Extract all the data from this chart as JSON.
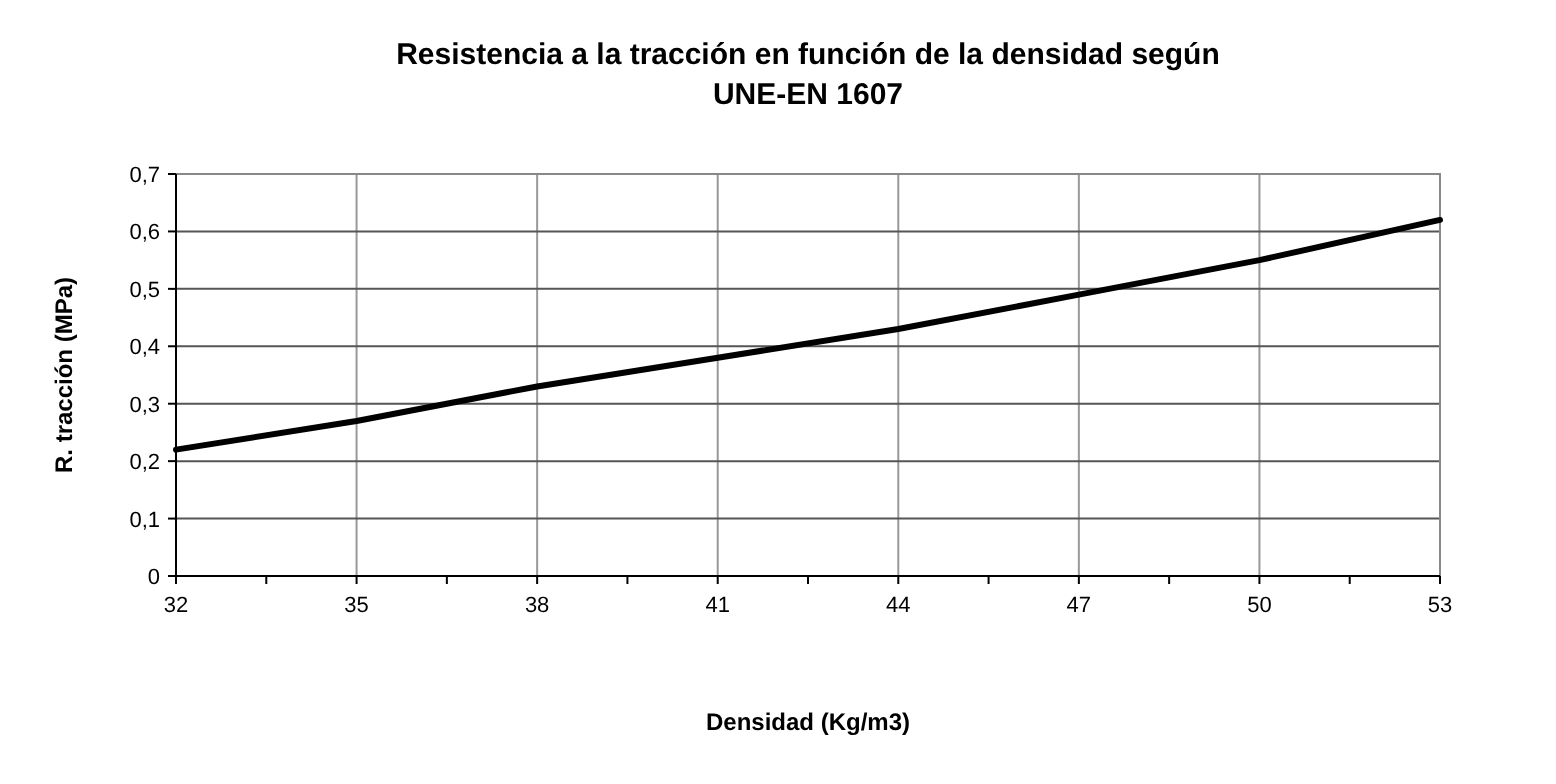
{
  "chart_data": {
    "type": "line",
    "title": "Resistencia a la tracción en función de la densidad según\nUNE-EN 1607",
    "xlabel": "Densidad (Kg/m3)",
    "ylabel": "R. tracción (MPa)",
    "x": [
      32,
      35,
      38,
      41,
      44,
      47,
      50,
      53
    ],
    "series": [
      {
        "color": "#000000",
        "values": [
          0.22,
          0.27,
          0.33,
          0.38,
          0.43,
          0.49,
          0.55,
          0.62
        ]
      }
    ],
    "xlim": [
      32,
      53
    ],
    "xticks": [
      32,
      {
        "value": 33.5,
        "label": null
      },
      35,
      {
        "value": 36.5,
        "label": null
      },
      38,
      {
        "value": 39.5,
        "label": null
      },
      41,
      {
        "value": 42.5,
        "label": null
      },
      44,
      {
        "value": 45.5,
        "label": null
      },
      47,
      {
        "value": 48.5,
        "label": null
      },
      50,
      {
        "value": 51.5,
        "label": null
      },
      53
    ],
    "ylim": [
      0,
      0.7
    ],
    "yticks": [
      {
        "value": 0,
        "label": "0"
      },
      {
        "value": 0.1,
        "label": "0,1"
      },
      {
        "value": 0.2,
        "label": "0,2"
      },
      {
        "value": 0.3,
        "label": "0,3"
      },
      {
        "value": 0.4,
        "label": "0,4"
      },
      {
        "value": 0.5,
        "label": "0,5"
      },
      {
        "value": 0.6,
        "label": "0,6"
      },
      {
        "value": 0.7,
        "label": "0,7"
      }
    ],
    "grid": true,
    "marker": "none",
    "line_style": "solid"
  }
}
